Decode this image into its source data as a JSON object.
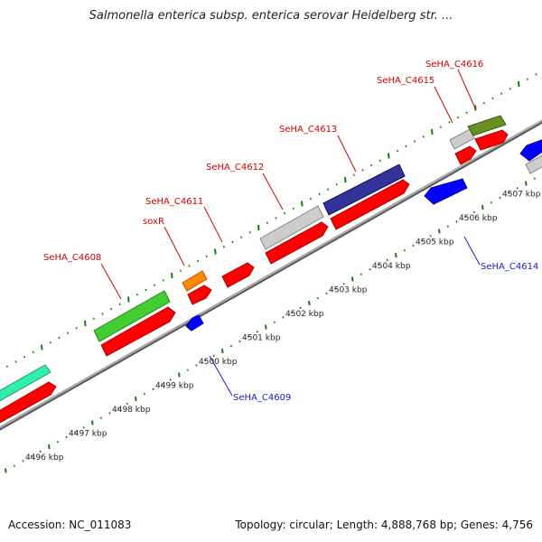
{
  "title": "Salmonella enterica subsp. enterica serovar Heidelberg str. ...",
  "footer": {
    "accession": "Accession: NC_011083",
    "summary": "Topology: circular; Length: 4,888,768 bp; Genes: 4,756"
  },
  "colors": {
    "red": "#ff0000",
    "blue": "#0000ff",
    "tick_green": "#1a7a1a",
    "label_red": "#d40000",
    "label_blue": "#1a1acc",
    "backbone": "#888888"
  },
  "scale": {
    "unit": "kbp",
    "ticks": [
      {
        "kbp": 4496,
        "label": "4496 kbp"
      },
      {
        "kbp": 4497,
        "label": "4497 kbp"
      },
      {
        "kbp": 4498,
        "label": "4498 kbp"
      },
      {
        "kbp": 4499,
        "label": "4499 kbp"
      },
      {
        "kbp": 4500,
        "label": "4500 kbp"
      },
      {
        "kbp": 4501,
        "label": "4501 kbp"
      },
      {
        "kbp": 4502,
        "label": "4502 kbp"
      },
      {
        "kbp": 4503,
        "label": "4503 kbp"
      },
      {
        "kbp": 4504,
        "label": "4504 kbp"
      },
      {
        "kbp": 4505,
        "label": "4505 kbp"
      },
      {
        "kbp": 4506,
        "label": "4506 kbp"
      },
      {
        "kbp": 4507,
        "label": "4507 kbp"
      }
    ]
  },
  "gene_labels": {
    "c4608": "SeHA_C4608",
    "soxR": "soxR",
    "c4611": "SeHA_C4611",
    "c4612": "SeHA_C4612",
    "c4613": "SeHA_C4613",
    "c4615": "SeHA_C4615",
    "c4616": "SeHA_C4616",
    "c4609": "SeHA_C4609",
    "c4614": "SeHA_C4614"
  }
}
